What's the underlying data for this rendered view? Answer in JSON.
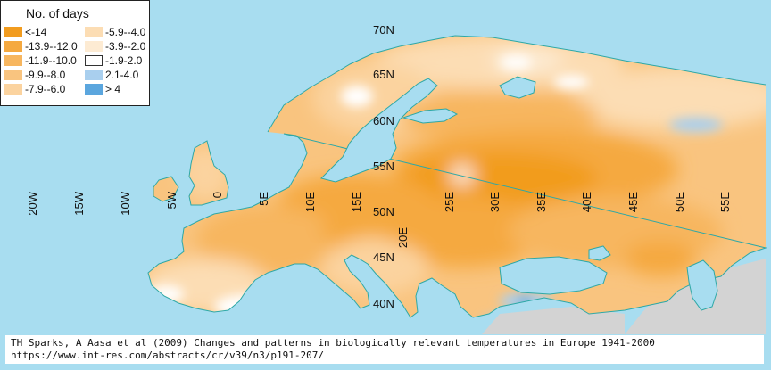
{
  "legend": {
    "title": "No. of days",
    "items": [
      {
        "label": "<-14",
        "color": "#F29C1F"
      },
      {
        "label": "-13.9--12.0",
        "color": "#F5A940"
      },
      {
        "label": "-11.9--10.0",
        "color": "#F7B65F"
      },
      {
        "label": "-9.9--8.0",
        "color": "#F9C47F"
      },
      {
        "label": "-7.9--6.0",
        "color": "#FBD39F"
      },
      {
        "label": "-5.9--4.0",
        "color": "#FCDDB4"
      },
      {
        "label": "-3.9--2.0",
        "color": "#FDEBD3"
      },
      {
        "label": "-1.9-2.0",
        "color": "#FFFFFF"
      },
      {
        "label": "2.1-4.0",
        "color": "#A9CFEE"
      },
      {
        "label": "> 4",
        "color": "#5BA6DE"
      }
    ]
  },
  "colors": {
    "sea": "#A8DDF0",
    "non_data_land": "#D3D3D3",
    "coast_outline": "#2EA8A6"
  },
  "lat_labels": [
    "70N",
    "65N",
    "60N",
    "55N",
    "50N",
    "45N",
    "40N"
  ],
  "lon_labels": [
    "20W",
    "15W",
    "10W",
    "5W",
    "0",
    "5E",
    "10E",
    "15E",
    "20E",
    "25E",
    "30E",
    "35E",
    "40E",
    "45E",
    "50E",
    "55E"
  ],
  "caption": {
    "line1": "TH Sparks, A Aasa et al (2009) Changes and patterns in biologically relevant temperatures in Europe 1941-2000",
    "line2": "https://www.int-res.com/abstracts/cr/v39/n3/p191-207/"
  }
}
